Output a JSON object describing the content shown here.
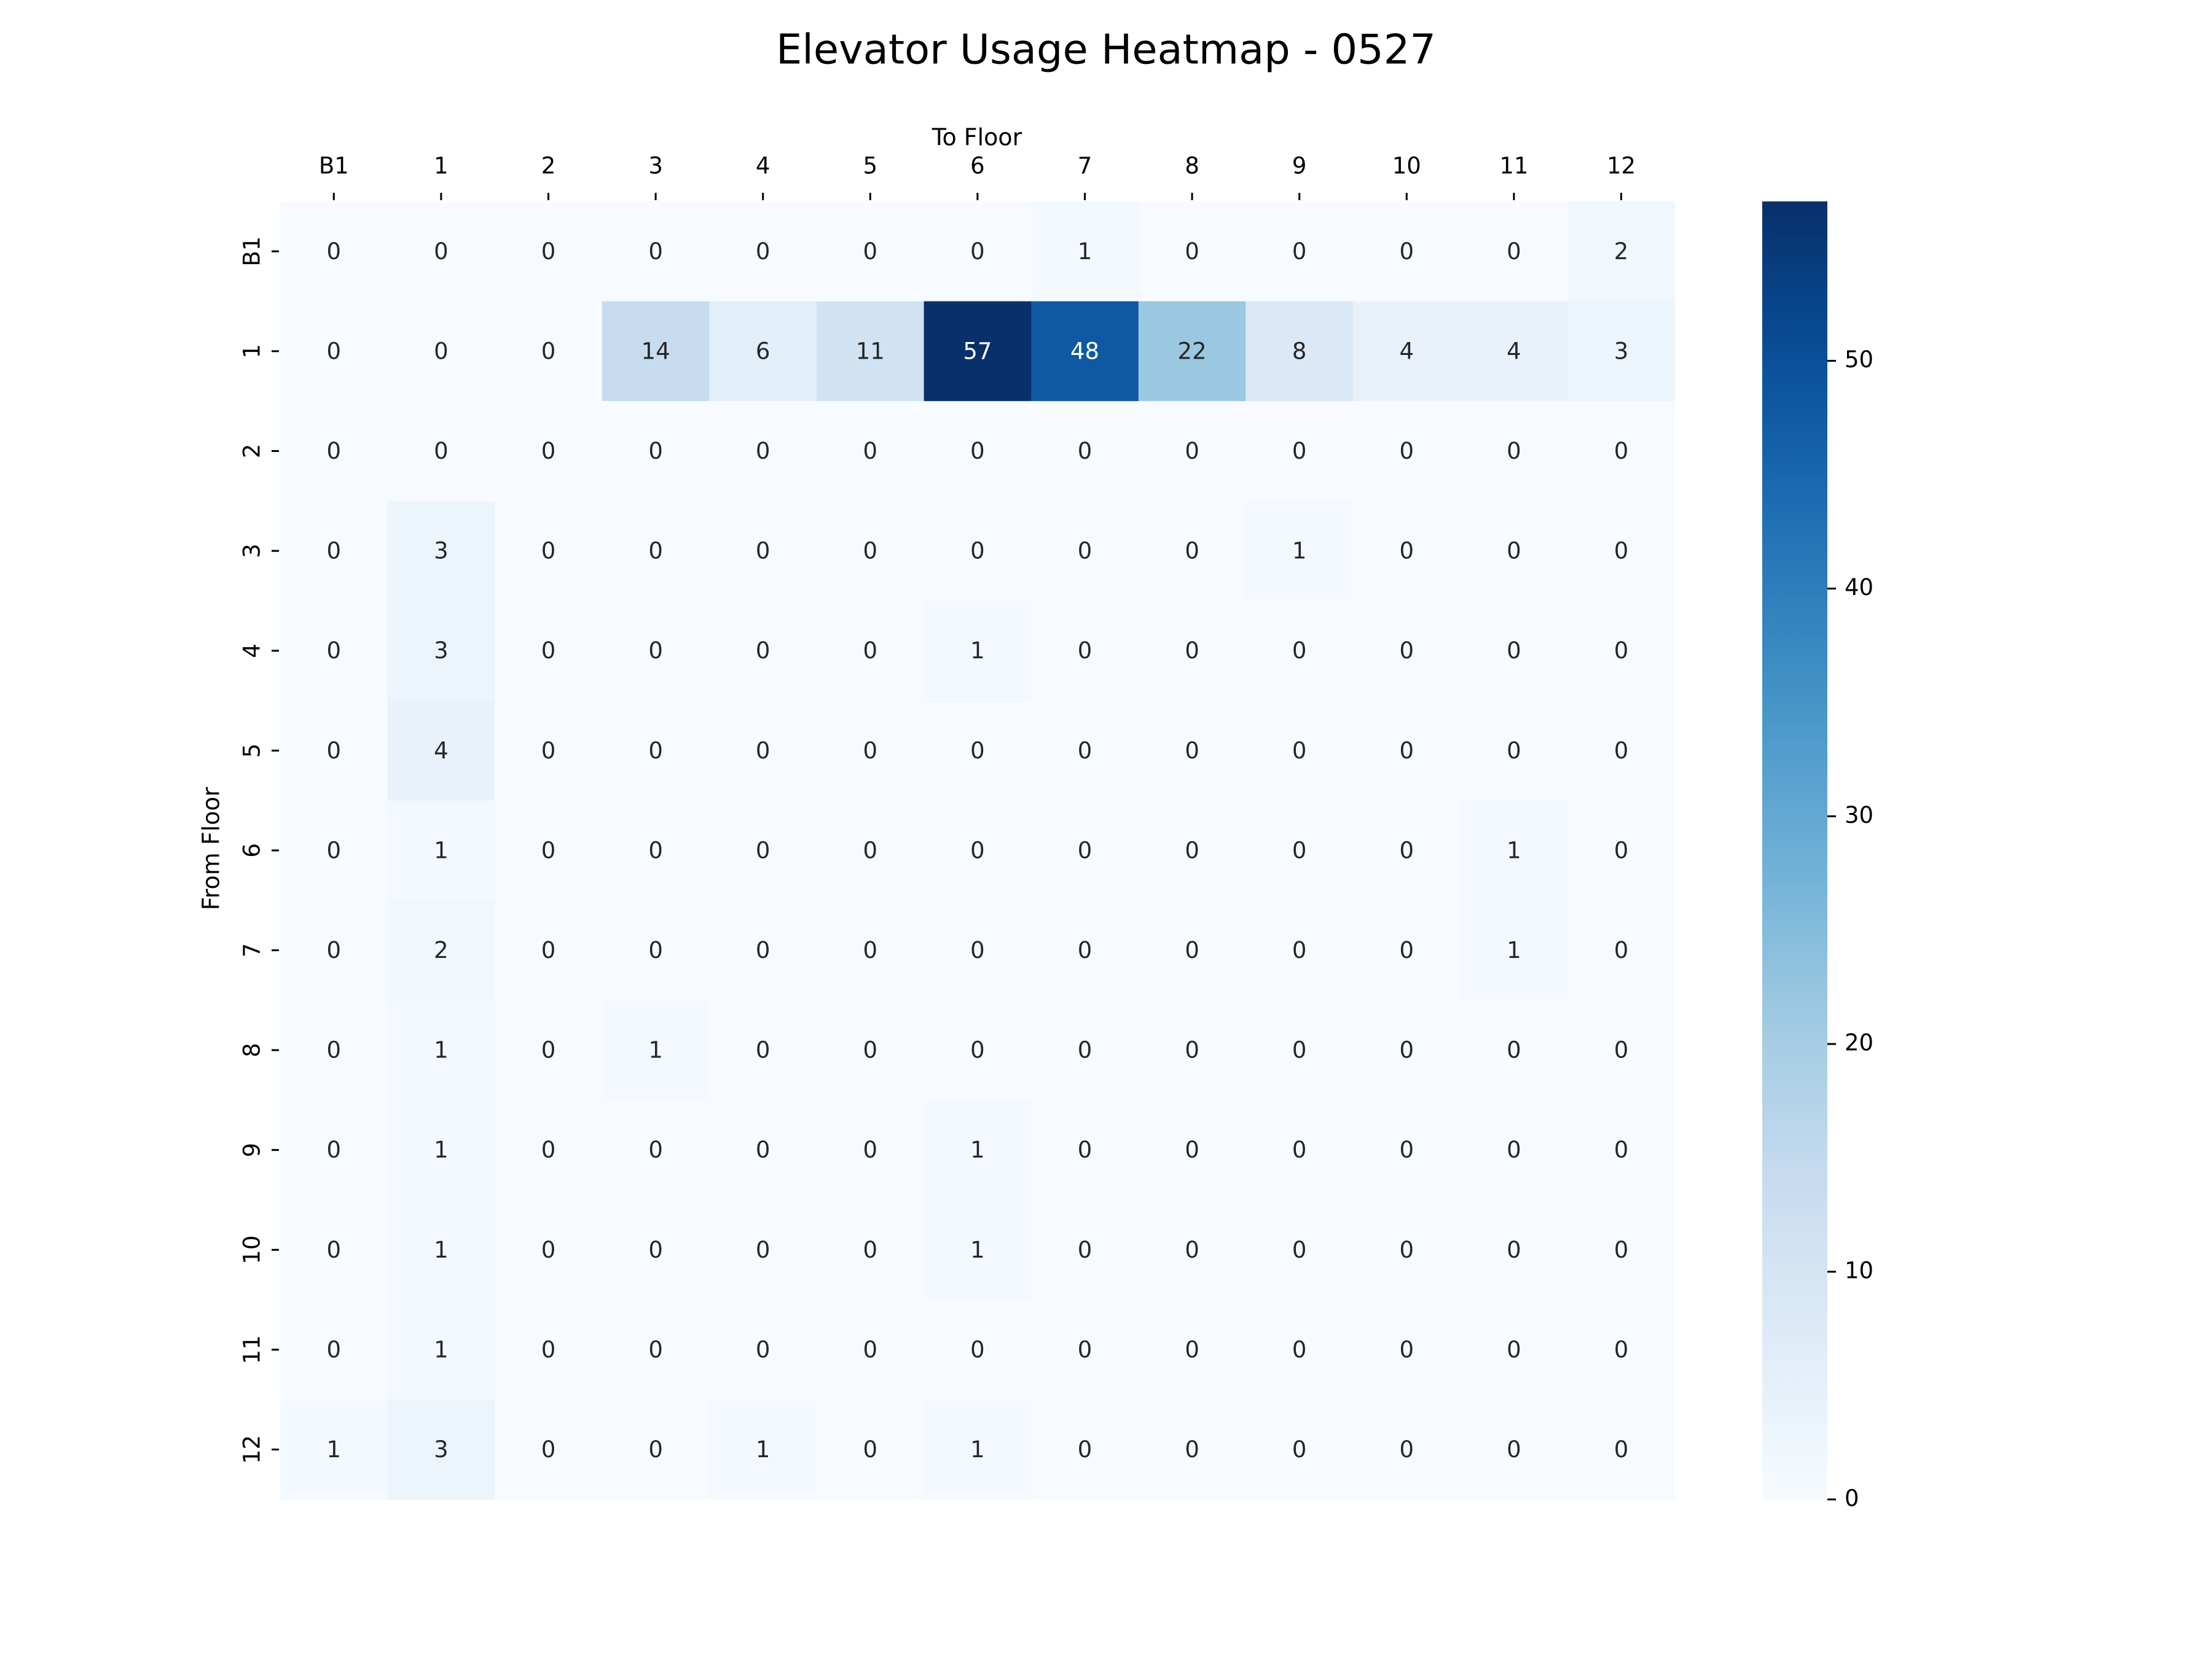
{
  "chart_data": {
    "type": "heatmap",
    "title": "Elevator Usage Heatmap - 0527",
    "xlabel": "To Floor",
    "ylabel": "From Floor",
    "x_categories": [
      "B1",
      "1",
      "2",
      "3",
      "4",
      "5",
      "6",
      "7",
      "8",
      "9",
      "10",
      "11",
      "12"
    ],
    "y_categories": [
      "B1",
      "1",
      "2",
      "3",
      "4",
      "5",
      "6",
      "7",
      "8",
      "9",
      "10",
      "11",
      "12"
    ],
    "values": [
      [
        0,
        0,
        0,
        0,
        0,
        0,
        0,
        1,
        0,
        0,
        0,
        0,
        2
      ],
      [
        0,
        0,
        0,
        14,
        6,
        11,
        57,
        48,
        22,
        8,
        4,
        4,
        3
      ],
      [
        0,
        0,
        0,
        0,
        0,
        0,
        0,
        0,
        0,
        0,
        0,
        0,
        0
      ],
      [
        0,
        3,
        0,
        0,
        0,
        0,
        0,
        0,
        0,
        1,
        0,
        0,
        0
      ],
      [
        0,
        3,
        0,
        0,
        0,
        0,
        1,
        0,
        0,
        0,
        0,
        0,
        0
      ],
      [
        0,
        4,
        0,
        0,
        0,
        0,
        0,
        0,
        0,
        0,
        0,
        0,
        0
      ],
      [
        0,
        1,
        0,
        0,
        0,
        0,
        0,
        0,
        0,
        0,
        0,
        1,
        0
      ],
      [
        0,
        2,
        0,
        0,
        0,
        0,
        0,
        0,
        0,
        0,
        0,
        1,
        0
      ],
      [
        0,
        1,
        0,
        1,
        0,
        0,
        0,
        0,
        0,
        0,
        0,
        0,
        0
      ],
      [
        0,
        1,
        0,
        0,
        0,
        0,
        1,
        0,
        0,
        0,
        0,
        0,
        0
      ],
      [
        0,
        1,
        0,
        0,
        0,
        0,
        1,
        0,
        0,
        0,
        0,
        0,
        0
      ],
      [
        0,
        1,
        0,
        0,
        0,
        0,
        0,
        0,
        0,
        0,
        0,
        0,
        0
      ],
      [
        1,
        3,
        0,
        0,
        1,
        0,
        1,
        0,
        0,
        0,
        0,
        0,
        0
      ]
    ],
    "colorbar": {
      "range": [
        0,
        57
      ],
      "ticks": [
        0,
        10,
        20,
        30,
        40,
        50
      ]
    },
    "colormap": "Blues",
    "annotated": true,
    "x_axis_position": "top"
  }
}
